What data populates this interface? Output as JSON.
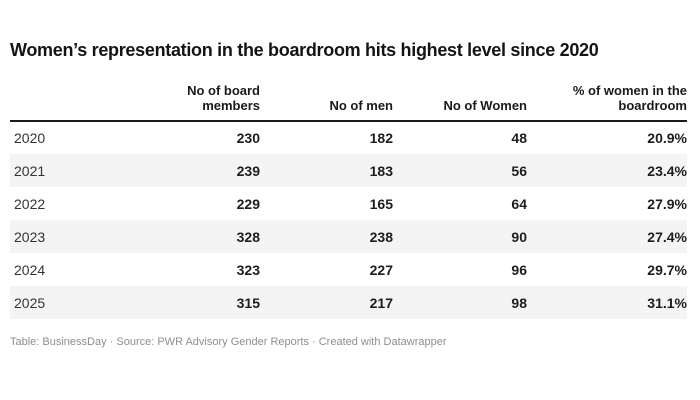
{
  "chart_data": {
    "type": "table",
    "title": "Women’s representation in the boardroom hits highest level since 2020",
    "columns": [
      "",
      "No of board members",
      "No of men",
      "No of Women",
      "% of women in the boardroom"
    ],
    "rows": [
      [
        "2020",
        230,
        182,
        48,
        "20.9%"
      ],
      [
        "2021",
        239,
        183,
        56,
        "23.4%"
      ],
      [
        "2022",
        229,
        165,
        64,
        "27.9%"
      ],
      [
        "2023",
        328,
        238,
        90,
        "27.4%"
      ],
      [
        "2024",
        323,
        227,
        96,
        "29.7%"
      ],
      [
        "2025",
        315,
        217,
        98,
        "31.1%"
      ]
    ],
    "footer": "Table: BusinessDay · Source: PWR Advisory Gender Reports · Created with Datawrapper",
    "layout_hints": {
      "striped_rows": true,
      "header_rule_color": "#1a1a1a",
      "stripe_color": "#f4f4f4",
      "numeric_alignment": "right"
    }
  },
  "colors": {
    "background": "#ffffff",
    "title_text": "#141414",
    "header_rule": "#1a1a1a",
    "stripe": "#f4f4f4",
    "year_text": "#333333",
    "number_text": "#1d1d1d",
    "footer_text": "#8e8e8e"
  }
}
